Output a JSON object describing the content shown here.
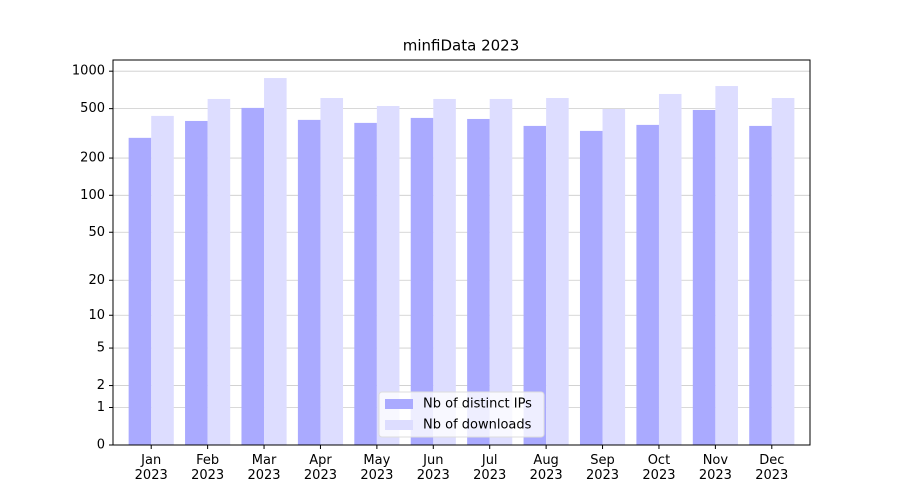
{
  "chart_data": {
    "type": "bar",
    "title": "minfiData 2023",
    "categories": [
      "Jan\n2023",
      "Feb\n2023",
      "Mar\n2023",
      "Apr\n2023",
      "May\n2023",
      "Jun\n2023",
      "Jul\n2023",
      "Aug\n2023",
      "Sep\n2023",
      "Oct\n2023",
      "Nov\n2023",
      "Dec\n2023"
    ],
    "series": [
      {
        "name": "Nb of distinct IPs",
        "color": "#aaaaff",
        "values": [
          291,
          398,
          507,
          406,
          384,
          421,
          413,
          363,
          331,
          370,
          488,
          363
        ]
      },
      {
        "name": "Nb of downloads",
        "color": "#ddddff",
        "values": [
          437,
          598,
          881,
          609,
          525,
          598,
          598,
          609,
          497,
          656,
          760,
          609
        ]
      }
    ],
    "yscale": "log1p",
    "ylim": [
      0,
      1230
    ],
    "yticks": [
      0,
      1,
      2,
      5,
      10,
      20,
      50,
      100,
      200,
      500,
      1000
    ],
    "grid": true,
    "legend": "lower center"
  }
}
